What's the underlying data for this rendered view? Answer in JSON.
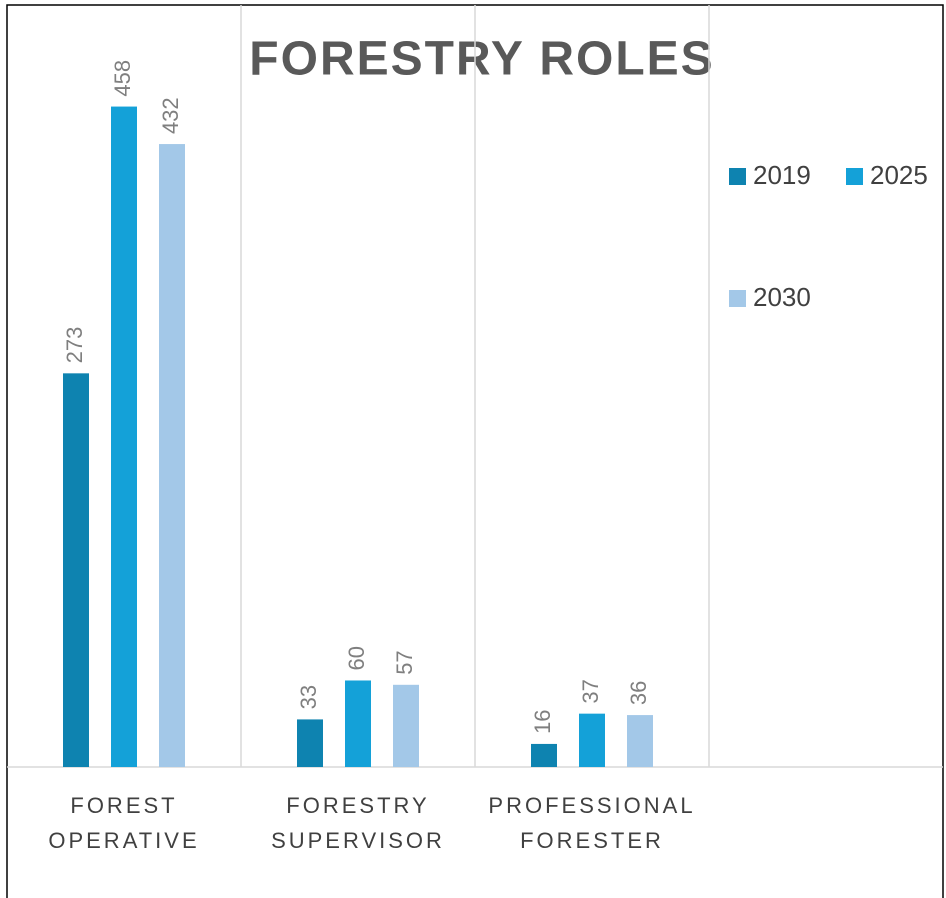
{
  "chart_data": {
    "type": "bar",
    "title": "FORESTRY ROLES",
    "categories": [
      "FOREST OPERATIVE",
      "FORESTRY SUPERVISOR",
      "PROFESSIONAL FORESTER"
    ],
    "series": [
      {
        "name": "2019",
        "color": "#0e83b0",
        "values": [
          273,
          33,
          16
        ]
      },
      {
        "name": "2025",
        "color": "#14a1d8",
        "values": [
          458,
          60,
          37
        ]
      },
      {
        "name": "2030",
        "color": "#a3c8e8",
        "values": [
          432,
          57,
          36
        ]
      }
    ],
    "ylim": [
      0,
      500
    ],
    "legend": "right",
    "grid": "vertical"
  }
}
